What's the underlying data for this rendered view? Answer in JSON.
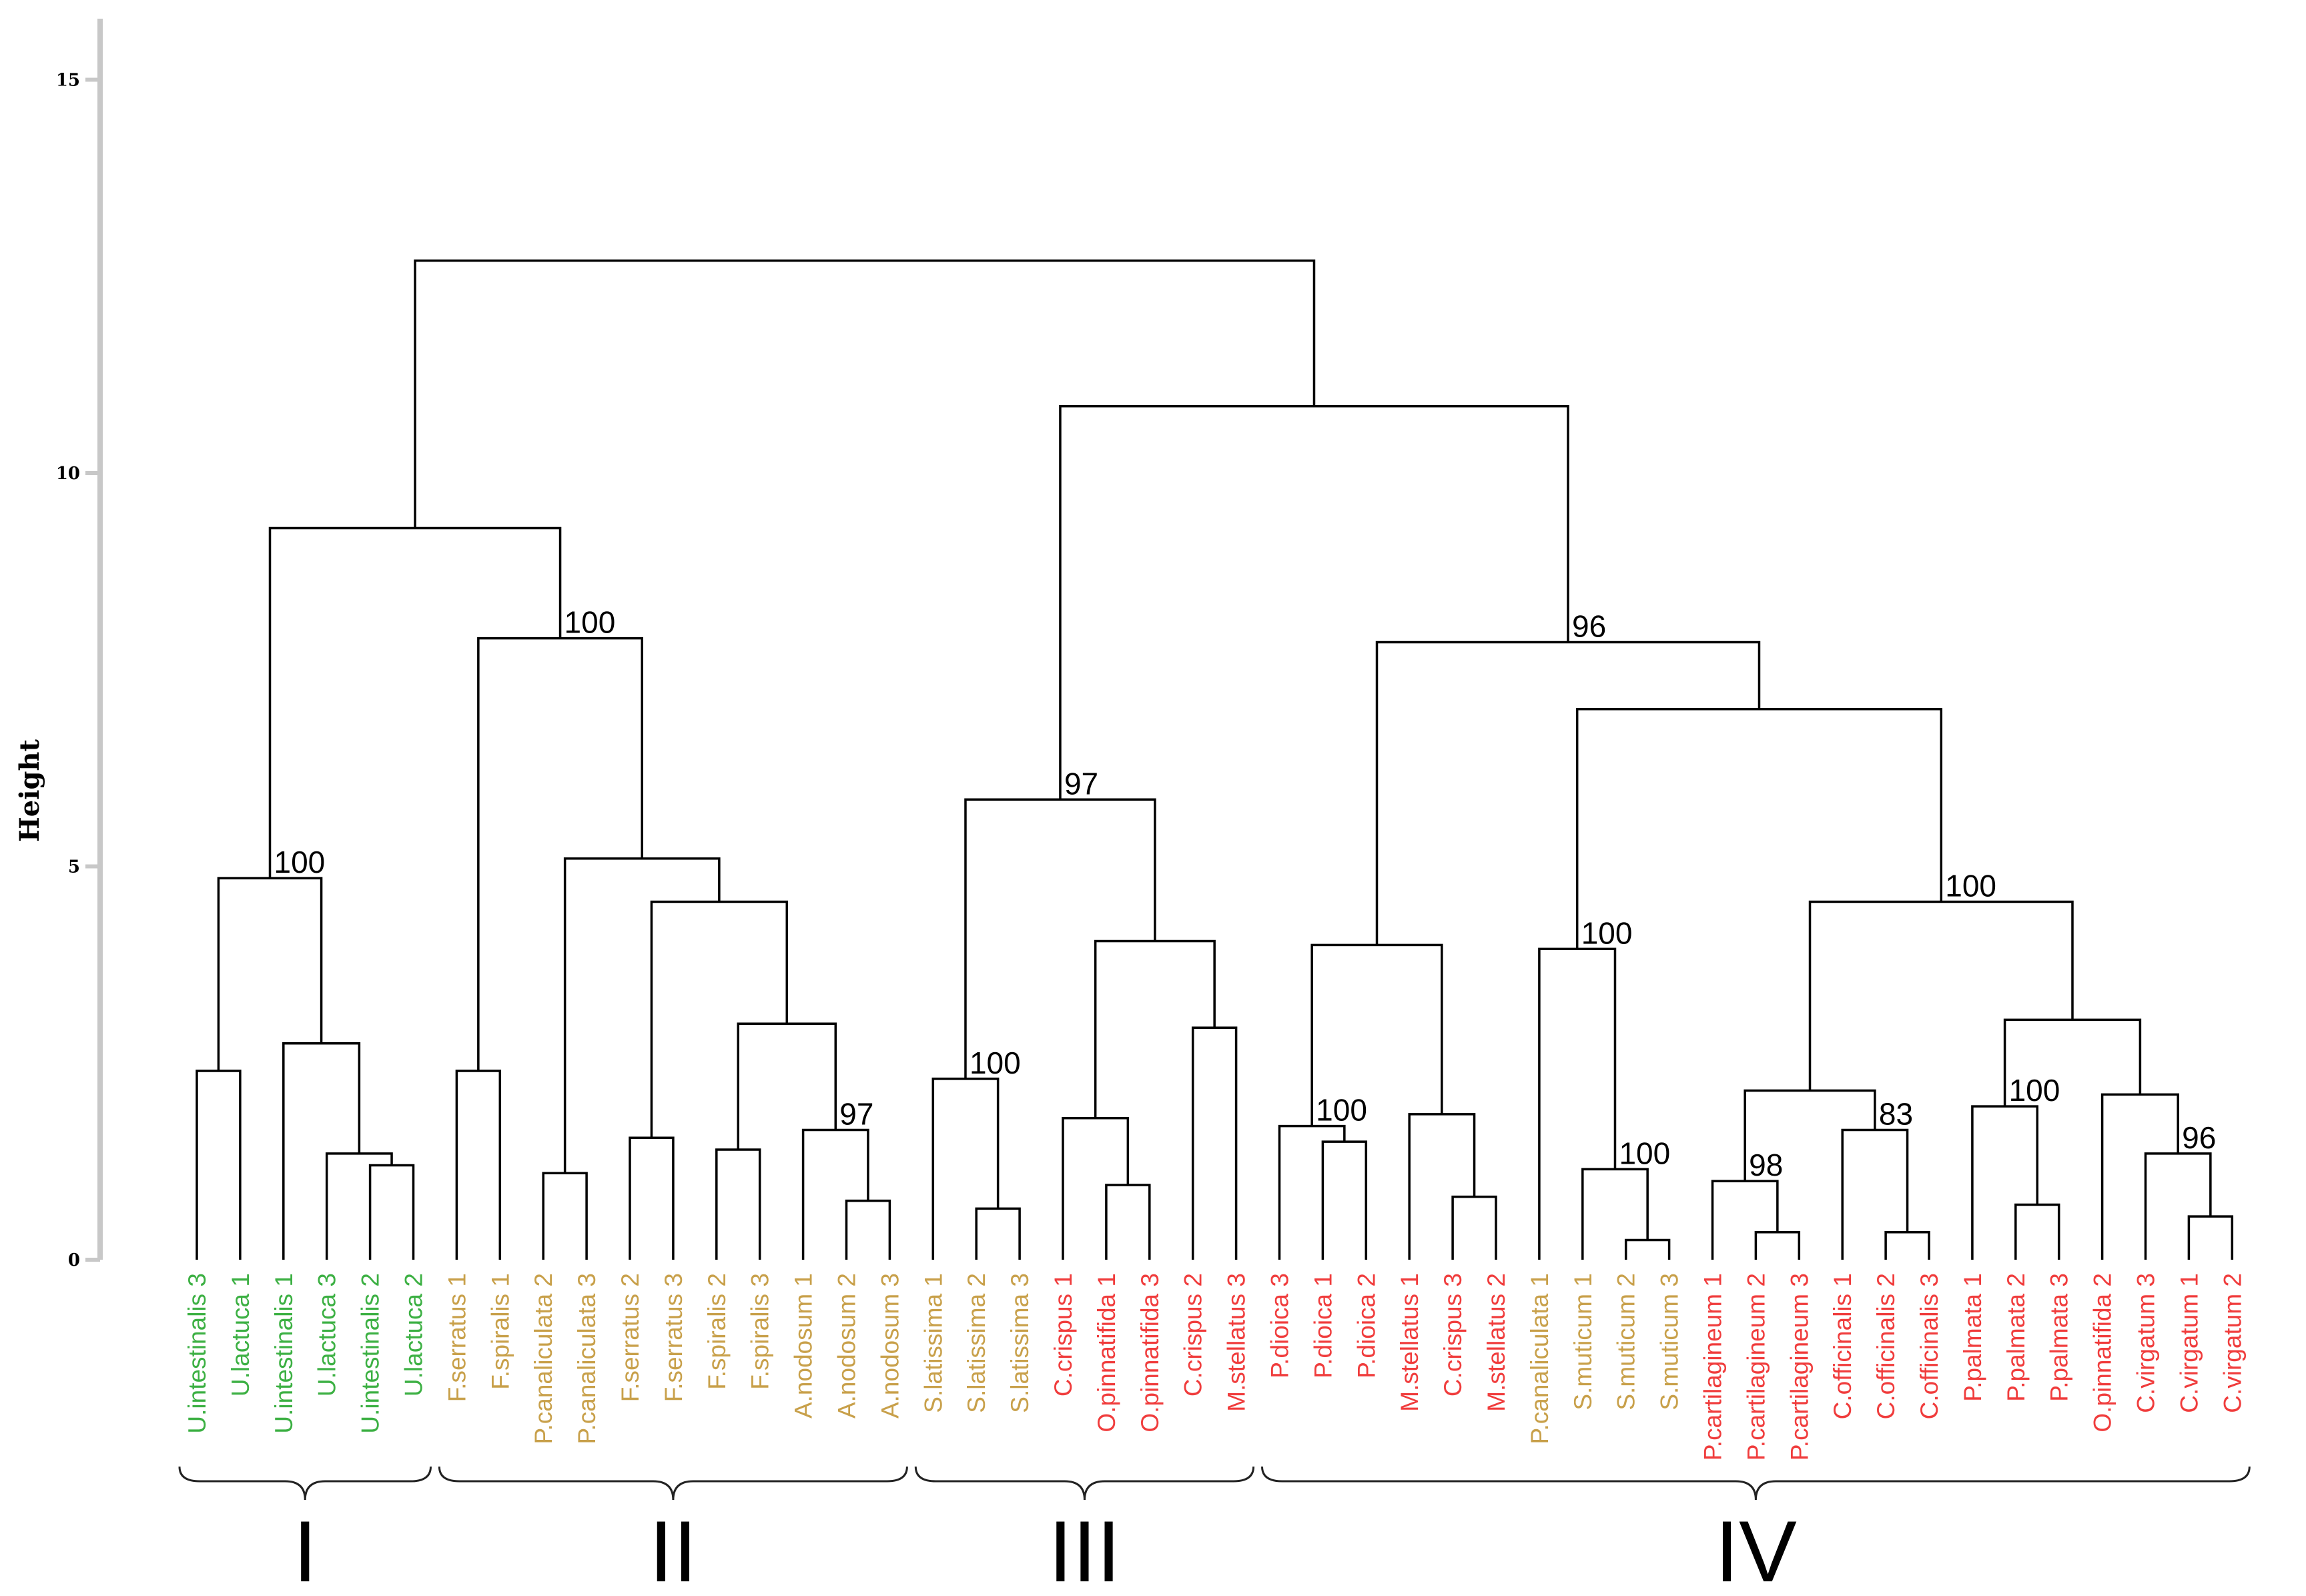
{
  "chart_data": {
    "type": "dendrogram",
    "ylabel": "Height",
    "ylim": [
      0,
      15.5
    ],
    "yticks": [
      0,
      5,
      10,
      15
    ],
    "colors": {
      "green": "#3cb043",
      "brown": "#c8a04a",
      "red": "#f03c3c",
      "branch": "#000000"
    },
    "leaves": [
      {
        "label": "U.intestinalis 3",
        "color": "green"
      },
      {
        "label": "U.lactuca 1",
        "color": "green"
      },
      {
        "label": "U.intestinalis 1",
        "color": "green"
      },
      {
        "label": "U.lactuca 3",
        "color": "green"
      },
      {
        "label": "U.intestinalis 2",
        "color": "green"
      },
      {
        "label": "U.lactuca 2",
        "color": "green"
      },
      {
        "label": "F.serratus 1",
        "color": "brown"
      },
      {
        "label": "F.spiralis 1",
        "color": "brown"
      },
      {
        "label": "P.canaliculata 2",
        "color": "brown"
      },
      {
        "label": "P.canaliculata 3",
        "color": "brown"
      },
      {
        "label": "F.serratus 2",
        "color": "brown"
      },
      {
        "label": "F.serratus 3",
        "color": "brown"
      },
      {
        "label": "F.spiralis 2",
        "color": "brown"
      },
      {
        "label": "F.spiralis 3",
        "color": "brown"
      },
      {
        "label": "A.nodosum 1",
        "color": "brown"
      },
      {
        "label": "A.nodosum 2",
        "color": "brown"
      },
      {
        "label": "A.nodosum 3",
        "color": "brown"
      },
      {
        "label": "S.latissima 1",
        "color": "brown"
      },
      {
        "label": "S.latissima 2",
        "color": "brown"
      },
      {
        "label": "S.latissima 3",
        "color": "brown"
      },
      {
        "label": "C.crispus 1",
        "color": "red"
      },
      {
        "label": "O.pinnatifida 1",
        "color": "red"
      },
      {
        "label": "O.pinnatifida 3",
        "color": "red"
      },
      {
        "label": "C.crispus 2",
        "color": "red"
      },
      {
        "label": "M.stellatus 3",
        "color": "red"
      },
      {
        "label": "P.dioica 3",
        "color": "red"
      },
      {
        "label": "P.dioica 1",
        "color": "red"
      },
      {
        "label": "P.dioica 2",
        "color": "red"
      },
      {
        "label": "M.stellatus 1",
        "color": "red"
      },
      {
        "label": "C.crispus 3",
        "color": "red"
      },
      {
        "label": "M.stellatus 2",
        "color": "red"
      },
      {
        "label": "P.canaliculata 1",
        "color": "brown"
      },
      {
        "label": "S.muticum 1",
        "color": "brown"
      },
      {
        "label": "S.muticum 2",
        "color": "brown"
      },
      {
        "label": "S.muticum 3",
        "color": "brown"
      },
      {
        "label": "P.cartilagineum 1",
        "color": "red"
      },
      {
        "label": "P.cartilagineum 2",
        "color": "red"
      },
      {
        "label": "P.cartilagineum 3",
        "color": "red"
      },
      {
        "label": "C.officinalis 1",
        "color": "red"
      },
      {
        "label": "C.officinalis 2",
        "color": "red"
      },
      {
        "label": "C.officinalis 3",
        "color": "red"
      },
      {
        "label": "P.palmata 1",
        "color": "red"
      },
      {
        "label": "P.palmata 2",
        "color": "red"
      },
      {
        "label": "P.palmata 3",
        "color": "red"
      },
      {
        "label": "O.pinnatifida 2",
        "color": "red"
      },
      {
        "label": "C.virgatum 3",
        "color": "red"
      },
      {
        "label": "C.virgatum 1",
        "color": "red"
      },
      {
        "label": "C.virgatum 2",
        "color": "red"
      }
    ],
    "merges": [
      {
        "id": "a1",
        "children": [
          "L0",
          "L1"
        ],
        "height": 2.4
      },
      {
        "id": "a2",
        "children": [
          "L4",
          "L5"
        ],
        "height": 1.2
      },
      {
        "id": "a3",
        "children": [
          "L3",
          "a2"
        ],
        "height": 1.35
      },
      {
        "id": "a4",
        "children": [
          "L2",
          "a3"
        ],
        "height": 2.75
      },
      {
        "id": "a5",
        "children": [
          "a1",
          "a4"
        ],
        "height": 4.85,
        "support": "100"
      },
      {
        "id": "b1",
        "children": [
          "L6",
          "L7"
        ],
        "height": 2.4
      },
      {
        "id": "b2",
        "children": [
          "L8",
          "L9"
        ],
        "height": 1.1
      },
      {
        "id": "b3",
        "children": [
          "L10",
          "L11"
        ],
        "height": 1.55
      },
      {
        "id": "b4",
        "children": [
          "L12",
          "L13"
        ],
        "height": 1.4
      },
      {
        "id": "b5",
        "children": [
          "L15",
          "L16"
        ],
        "height": 0.75
      },
      {
        "id": "b6",
        "children": [
          "L14",
          "b5"
        ],
        "height": 1.65,
        "support": "97"
      },
      {
        "id": "b7",
        "children": [
          "b4",
          "b6"
        ],
        "height": 3.0
      },
      {
        "id": "b8",
        "children": [
          "b3",
          "b7"
        ],
        "height": 4.55
      },
      {
        "id": "b9",
        "children": [
          "b2",
          "b8"
        ],
        "height": 5.1
      },
      {
        "id": "b10",
        "children": [
          "b1",
          "b9"
        ],
        "height": 7.9,
        "support": "100"
      },
      {
        "id": "r1",
        "children": [
          "a5",
          "b10"
        ],
        "height": 9.3
      },
      {
        "id": "c1",
        "children": [
          "L18",
          "L19"
        ],
        "height": 0.65
      },
      {
        "id": "c2",
        "children": [
          "L17",
          "c1"
        ],
        "height": 2.3,
        "support": "100"
      },
      {
        "id": "c3",
        "children": [
          "L21",
          "L22"
        ],
        "height": 0.95
      },
      {
        "id": "c4",
        "children": [
          "L20",
          "c3"
        ],
        "height": 1.8
      },
      {
        "id": "c5",
        "children": [
          "L23",
          "L24"
        ],
        "height": 2.95
      },
      {
        "id": "c6",
        "children": [
          "c4",
          "c5"
        ],
        "height": 4.05
      },
      {
        "id": "c7",
        "children": [
          "c2",
          "c6"
        ],
        "height": 5.85,
        "support": "97"
      },
      {
        "id": "d1",
        "children": [
          "L26",
          "L27"
        ],
        "height": 1.5
      },
      {
        "id": "d2",
        "children": [
          "L25",
          "d1"
        ],
        "height": 1.7,
        "support": "100"
      },
      {
        "id": "d3",
        "children": [
          "L29",
          "L30"
        ],
        "height": 0.8
      },
      {
        "id": "d4",
        "children": [
          "L28",
          "d3"
        ],
        "height": 1.85
      },
      {
        "id": "d5",
        "children": [
          "d2",
          "d4"
        ],
        "height": 4.0
      },
      {
        "id": "e1",
        "children": [
          "L33",
          "L34"
        ],
        "height": 0.25
      },
      {
        "id": "e2",
        "children": [
          "L32",
          "e1"
        ],
        "height": 1.15,
        "support": "100"
      },
      {
        "id": "e3",
        "children": [
          "L31",
          "e2"
        ],
        "height": 3.95,
        "support": "100"
      },
      {
        "id": "f1",
        "children": [
          "L36",
          "L37"
        ],
        "height": 0.35
      },
      {
        "id": "f2",
        "children": [
          "L35",
          "f1"
        ],
        "height": 1.0,
        "support": "98"
      },
      {
        "id": "f3",
        "children": [
          "L39",
          "L40"
        ],
        "height": 0.35
      },
      {
        "id": "f4",
        "children": [
          "L38",
          "f3"
        ],
        "height": 1.65,
        "support": "83"
      },
      {
        "id": "f5",
        "children": [
          "f2",
          "f4"
        ],
        "height": 2.15
      },
      {
        "id": "g1",
        "children": [
          "L42",
          "L43"
        ],
        "height": 0.7
      },
      {
        "id": "g2",
        "children": [
          "L41",
          "g1"
        ],
        "height": 1.95,
        "support": "100"
      },
      {
        "id": "g3",
        "children": [
          "L46",
          "L47"
        ],
        "height": 0.55
      },
      {
        "id": "g4",
        "children": [
          "L45",
          "g3"
        ],
        "height": 1.35,
        "support": "96"
      },
      {
        "id": "g5",
        "children": [
          "L44",
          "g4"
        ],
        "height": 2.1
      },
      {
        "id": "g6",
        "children": [
          "g2",
          "g5"
        ],
        "height": 3.05
      },
      {
        "id": "g7",
        "children": [
          "f5",
          "g6"
        ],
        "height": 4.55,
        "support": "100"
      },
      {
        "id": "h1",
        "children": [
          "e3",
          "g7"
        ],
        "height": 7.0
      },
      {
        "id": "h2",
        "children": [
          "d5",
          "h1"
        ],
        "height": 7.85,
        "support": "96"
      },
      {
        "id": "h3",
        "children": [
          "c7",
          "h2"
        ],
        "height": 10.85
      },
      {
        "id": "root",
        "children": [
          "r1",
          "h3"
        ],
        "height": 12.7
      }
    ],
    "groups": [
      {
        "label": "I",
        "from": 0,
        "to": 5
      },
      {
        "label": "II",
        "from": 6,
        "to": 16
      },
      {
        "label": "III",
        "from": 17,
        "to": 24
      },
      {
        "label": "IV",
        "from": 25,
        "to": 47
      }
    ]
  }
}
